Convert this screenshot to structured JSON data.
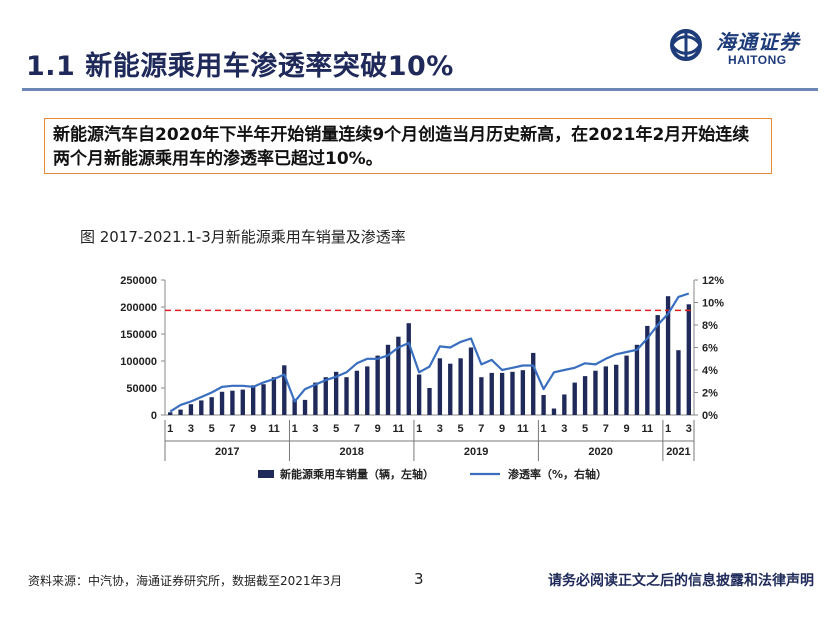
{
  "slide": {
    "title": "1.1 新能源乘用车渗透率突破10%",
    "callout": "新能源汽车自2020年下半年开始销量连续9个月创造当月历史新高，在2021年2月开始连续两个月新能源乘用车的渗透率已超过10%。",
    "figure_title": "图 2017-2021.1-3月新能源乘用车销量及渗透率",
    "source": "资料来源：中汽协，海通证券研究所，数据截至2021年3月",
    "page_number": "3",
    "disclaimer": "请务必阅读正文之后的信息披露和法律声明"
  },
  "logo": {
    "cn": "海通证券",
    "en": "HAITONG"
  },
  "colors": {
    "bar": "#1f2a5a",
    "line": "#3a6fc0",
    "ref": "#e02020",
    "title": "#1f2a5a"
  },
  "chart_data": {
    "type": "bar",
    "x": [
      "2017-01",
      "2017-02",
      "2017-03",
      "2017-04",
      "2017-05",
      "2017-06",
      "2017-07",
      "2017-08",
      "2017-09",
      "2017-10",
      "2017-11",
      "2017-12",
      "2018-01",
      "2018-02",
      "2018-03",
      "2018-04",
      "2018-05",
      "2018-06",
      "2018-07",
      "2018-08",
      "2018-09",
      "2018-10",
      "2018-11",
      "2018-12",
      "2019-01",
      "2019-02",
      "2019-03",
      "2019-04",
      "2019-05",
      "2019-06",
      "2019-07",
      "2019-08",
      "2019-09",
      "2019-10",
      "2019-11",
      "2019-12",
      "2020-01",
      "2020-02",
      "2020-03",
      "2020-04",
      "2020-05",
      "2020-06",
      "2020-07",
      "2020-08",
      "2020-09",
      "2020-10",
      "2020-11",
      "2020-12",
      "2021-01",
      "2021-02",
      "2021-03"
    ],
    "month_tick_labels": [
      "1",
      "3",
      "5",
      "7",
      "9",
      "11",
      "1",
      "3",
      "5",
      "7",
      "9",
      "11",
      "1",
      "3",
      "5",
      "7",
      "9",
      "11",
      "1",
      "3",
      "5",
      "7",
      "9",
      "11",
      "1",
      "3"
    ],
    "year_labels": [
      "2017",
      "2018",
      "2019",
      "2020",
      "2021"
    ],
    "series": [
      {
        "name": "新能源乘用车销量（辆，左轴）",
        "axis": "left",
        "type": "bar",
        "values": [
          5000,
          10000,
          20000,
          27000,
          33000,
          43000,
          45000,
          47000,
          55000,
          57000,
          70000,
          92000,
          30000,
          28000,
          60000,
          70000,
          80000,
          70000,
          82000,
          90000,
          110000,
          130000,
          145000,
          170000,
          75000,
          50000,
          105000,
          95000,
          105000,
          125000,
          70000,
          78000,
          78000,
          80000,
          83000,
          115000,
          37000,
          12000,
          38000,
          60000,
          72000,
          82000,
          90000,
          93000,
          110000,
          130000,
          165000,
          185000,
          220000,
          120000,
          205000
        ]
      },
      {
        "name": "渗透率（%，右轴）",
        "axis": "right",
        "type": "line",
        "values": [
          0.3,
          0.9,
          1.2,
          1.6,
          2.0,
          2.5,
          2.6,
          2.6,
          2.5,
          2.9,
          3.2,
          3.6,
          1.2,
          2.3,
          2.7,
          3.1,
          3.4,
          3.8,
          4.6,
          5.0,
          5.0,
          5.3,
          6.0,
          6.4,
          3.8,
          4.3,
          6.1,
          6.0,
          6.5,
          6.8,
          4.5,
          4.9,
          4.0,
          4.2,
          4.4,
          4.4,
          2.3,
          3.8,
          4.0,
          4.2,
          4.6,
          4.5,
          5.0,
          5.4,
          5.6,
          5.8,
          6.8,
          8.0,
          9.0,
          10.5,
          10.8
        ]
      }
    ],
    "y_left": {
      "ticks": [
        "0",
        "50000",
        "100000",
        "150000",
        "200000",
        "250000"
      ],
      "range": [
        0,
        250000
      ]
    },
    "y_right": {
      "ticks": [
        "0%",
        "2%",
        "4%",
        "6%",
        "8%",
        "10%",
        "12%"
      ],
      "range": [
        0,
        12
      ]
    },
    "reference_line": {
      "axis": "right",
      "value": 9.3,
      "style": "dashed",
      "color": "#e02020"
    },
    "legend": {
      "placement": "bottom"
    }
  }
}
